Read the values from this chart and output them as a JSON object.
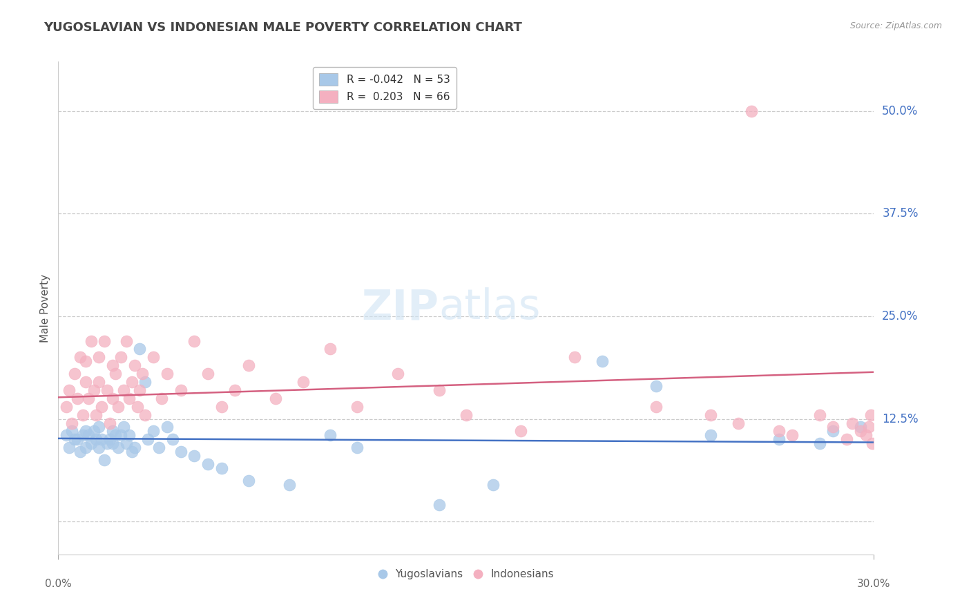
{
  "title": "YUGOSLAVIAN VS INDONESIAN MALE POVERTY CORRELATION CHART",
  "source": "Source: ZipAtlas.com",
  "ylabel": "Male Poverty",
  "xlim": [
    0.0,
    30.0
  ],
  "ylim": [
    -4.0,
    56.0
  ],
  "ytick_positions": [
    0.0,
    12.5,
    25.0,
    37.5,
    50.0
  ],
  "ytick_labels": [
    "",
    "12.5%",
    "25.0%",
    "37.5%",
    "50.0%"
  ],
  "series1_color": "#a8c8e8",
  "series2_color": "#f4b0c0",
  "trendline1_color": "#4472c4",
  "trendline2_color": "#d46080",
  "legend_label1": "R = -0.042   N = 53",
  "legend_label2": "R =  0.203   N = 66",
  "legend_bottom_label1": "Yugoslavians",
  "legend_bottom_label2": "Indonesians",
  "watermark_text": "ZIPatlas",
  "blue_x": [
    0.3,
    0.4,
    0.5,
    0.6,
    0.7,
    0.8,
    0.9,
    1.0,
    1.0,
    1.1,
    1.2,
    1.3,
    1.4,
    1.5,
    1.5,
    1.6,
    1.7,
    1.8,
    1.9,
    2.0,
    2.0,
    2.1,
    2.2,
    2.3,
    2.4,
    2.5,
    2.6,
    2.7,
    2.8,
    3.0,
    3.2,
    3.3,
    3.5,
    3.7,
    4.0,
    4.2,
    4.5,
    5.0,
    5.5,
    6.0,
    7.0,
    8.5,
    10.0,
    11.0,
    14.0,
    16.0,
    20.0,
    22.0,
    24.0,
    26.5,
    28.0,
    28.5,
    29.5
  ],
  "blue_y": [
    10.5,
    9.0,
    11.0,
    10.0,
    10.0,
    8.5,
    10.5,
    9.0,
    11.0,
    10.5,
    9.5,
    11.0,
    10.0,
    9.0,
    11.5,
    10.0,
    7.5,
    9.5,
    10.0,
    9.5,
    11.0,
    10.5,
    9.0,
    10.5,
    11.5,
    9.5,
    10.5,
    8.5,
    9.0,
    21.0,
    17.0,
    10.0,
    11.0,
    9.0,
    11.5,
    10.0,
    8.5,
    8.0,
    7.0,
    6.5,
    5.0,
    4.5,
    10.5,
    9.0,
    2.0,
    4.5,
    19.5,
    16.5,
    10.5,
    10.0,
    9.5,
    11.0,
    11.5
  ],
  "pink_x": [
    0.3,
    0.4,
    0.5,
    0.6,
    0.7,
    0.8,
    0.9,
    1.0,
    1.0,
    1.1,
    1.2,
    1.3,
    1.4,
    1.5,
    1.5,
    1.6,
    1.7,
    1.8,
    1.9,
    2.0,
    2.0,
    2.1,
    2.2,
    2.3,
    2.4,
    2.5,
    2.6,
    2.7,
    2.8,
    2.9,
    3.0,
    3.1,
    3.2,
    3.5,
    3.8,
    4.0,
    4.5,
    5.0,
    5.5,
    6.0,
    6.5,
    7.0,
    8.0,
    9.0,
    10.0,
    11.0,
    12.5,
    14.0,
    15.0,
    17.0,
    19.0,
    22.0,
    24.0,
    25.0,
    25.5,
    26.5,
    27.0,
    28.0,
    28.5,
    29.0,
    29.2,
    29.5,
    29.7,
    29.8,
    29.9,
    29.95
  ],
  "pink_y": [
    14.0,
    16.0,
    12.0,
    18.0,
    15.0,
    20.0,
    13.0,
    17.0,
    19.5,
    15.0,
    22.0,
    16.0,
    13.0,
    20.0,
    17.0,
    14.0,
    22.0,
    16.0,
    12.0,
    19.0,
    15.0,
    18.0,
    14.0,
    20.0,
    16.0,
    22.0,
    15.0,
    17.0,
    19.0,
    14.0,
    16.0,
    18.0,
    13.0,
    20.0,
    15.0,
    18.0,
    16.0,
    22.0,
    18.0,
    14.0,
    16.0,
    19.0,
    15.0,
    17.0,
    21.0,
    14.0,
    18.0,
    16.0,
    13.0,
    11.0,
    20.0,
    14.0,
    13.0,
    12.0,
    50.0,
    11.0,
    10.5,
    13.0,
    11.5,
    10.0,
    12.0,
    11.0,
    10.5,
    11.5,
    13.0,
    9.5
  ]
}
